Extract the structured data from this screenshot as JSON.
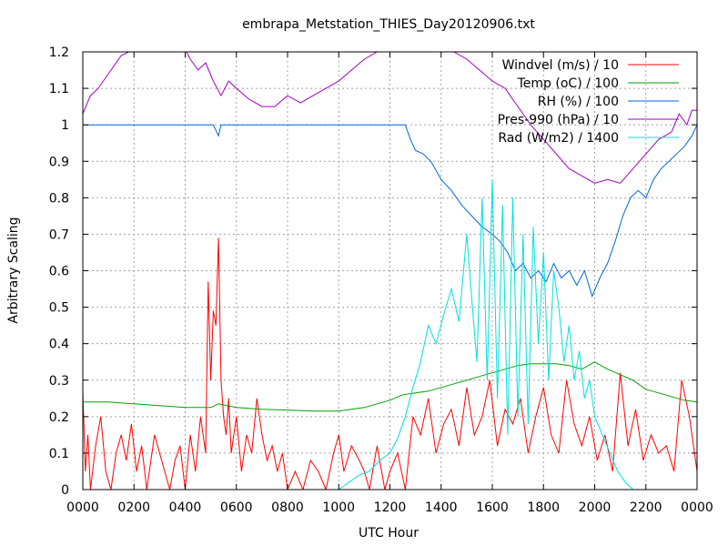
{
  "chart_data": {
    "type": "line",
    "title": "embrapa_Metstation_THIES_Day20120906.txt",
    "xlabel": "UTC Hour",
    "ylabel": "Arbitrary Scaling",
    "xlim": [
      0,
      24
    ],
    "ylim": [
      0,
      1.2
    ],
    "x_tick_labels": [
      "0000",
      "0200",
      "0400",
      "0600",
      "0800",
      "1000",
      "1200",
      "1400",
      "1600",
      "1800",
      "2000",
      "2200",
      "0000"
    ],
    "y_tick_labels": [
      "0",
      "0.1",
      "0.2",
      "0.3",
      "0.4",
      "0.5",
      "0.6",
      "0.7",
      "0.8",
      "0.9",
      "1",
      "1.1",
      "1.2"
    ],
    "grid": true,
    "legend_position": "top-right",
    "series": [
      {
        "name": "Windvel (m/s) / 10",
        "color": "#ff0000",
        "x": [
          0,
          0.1,
          0.2,
          0.3,
          0.5,
          0.7,
          0.9,
          1.1,
          1.3,
          1.5,
          1.7,
          1.9,
          2.1,
          2.3,
          2.5,
          2.8,
          3.0,
          3.2,
          3.4,
          3.6,
          3.8,
          4.0,
          4.2,
          4.4,
          4.6,
          4.8,
          4.9,
          5.0,
          5.1,
          5.2,
          5.3,
          5.4,
          5.5,
          5.6,
          5.7,
          5.8,
          6.0,
          6.2,
          6.4,
          6.6,
          6.8,
          7.0,
          7.2,
          7.4,
          7.6,
          7.8,
          8.0,
          8.3,
          8.6,
          8.9,
          9.2,
          9.5,
          9.8,
          10.0,
          10.2,
          10.5,
          10.8,
          11.0,
          11.2,
          11.5,
          11.8,
          12.0,
          12.3,
          12.6,
          12.9,
          13.2,
          13.5,
          13.8,
          14.1,
          14.4,
          14.7,
          15.0,
          15.3,
          15.6,
          15.9,
          16.2,
          16.5,
          16.8,
          17.1,
          17.4,
          17.7,
          18.0,
          18.3,
          18.6,
          18.9,
          19.2,
          19.5,
          19.8,
          20.1,
          20.4,
          20.7,
          21.0,
          21.3,
          21.6,
          21.9,
          22.2,
          22.5,
          22.8,
          23.1,
          23.4,
          23.7,
          24.0
        ],
        "values": [
          0.27,
          0.05,
          0.15,
          0.0,
          0.12,
          0.2,
          0.05,
          0.0,
          0.1,
          0.15,
          0.08,
          0.18,
          0.05,
          0.12,
          0.0,
          0.15,
          0.1,
          0.05,
          0.0,
          0.08,
          0.12,
          0.0,
          0.15,
          0.05,
          0.2,
          0.1,
          0.57,
          0.3,
          0.49,
          0.45,
          0.69,
          0.3,
          0.2,
          0.15,
          0.25,
          0.1,
          0.2,
          0.05,
          0.15,
          0.1,
          0.25,
          0.15,
          0.08,
          0.12,
          0.05,
          0.1,
          0.0,
          0.05,
          0.0,
          0.08,
          0.05,
          0.0,
          0.1,
          0.15,
          0.05,
          0.12,
          0.08,
          0.05,
          0.0,
          0.12,
          0.0,
          0.05,
          0.1,
          0.0,
          0.2,
          0.15,
          0.25,
          0.1,
          0.18,
          0.22,
          0.12,
          0.28,
          0.15,
          0.2,
          0.3,
          0.12,
          0.22,
          0.18,
          0.25,
          0.1,
          0.2,
          0.28,
          0.15,
          0.1,
          0.3,
          0.18,
          0.12,
          0.2,
          0.08,
          0.15,
          0.05,
          0.32,
          0.12,
          0.22,
          0.08,
          0.15,
          0.1,
          0.12,
          0.05,
          0.3,
          0.2,
          0.05
        ]
      },
      {
        "name": "Temp (oC) / 100",
        "color": "#00a000",
        "x": [
          0,
          1,
          2,
          3,
          4,
          5,
          5.3,
          6,
          7,
          8,
          9,
          10,
          10.5,
          11,
          11.5,
          12,
          12.5,
          13,
          13.5,
          14,
          14.5,
          15,
          15.5,
          16,
          16.5,
          17,
          17.5,
          18,
          18.5,
          19,
          19.5,
          20,
          20.5,
          21,
          21.5,
          22,
          22.5,
          23,
          23.5,
          24
        ],
        "values": [
          0.24,
          0.24,
          0.235,
          0.23,
          0.225,
          0.225,
          0.235,
          0.225,
          0.22,
          0.218,
          0.215,
          0.215,
          0.22,
          0.225,
          0.235,
          0.245,
          0.26,
          0.265,
          0.27,
          0.28,
          0.29,
          0.3,
          0.31,
          0.32,
          0.33,
          0.34,
          0.345,
          0.345,
          0.345,
          0.34,
          0.33,
          0.35,
          0.33,
          0.315,
          0.3,
          0.275,
          0.265,
          0.255,
          0.245,
          0.24
        ]
      },
      {
        "name": "RH (%) / 100",
        "color": "#0066dd",
        "x": [
          0,
          2,
          4,
          5.1,
          5.3,
          5.4,
          5.6,
          7,
          9,
          11,
          12.6,
          12.8,
          13.0,
          13.3,
          13.6,
          14.0,
          14.4,
          14.8,
          15.2,
          15.6,
          16.0,
          16.3,
          16.6,
          16.9,
          17.2,
          17.5,
          17.8,
          18.1,
          18.4,
          18.7,
          19.0,
          19.3,
          19.6,
          19.9,
          20.2,
          20.5,
          20.8,
          21.1,
          21.4,
          21.7,
          22.0,
          22.3,
          22.6,
          22.9,
          23.2,
          23.5,
          23.8,
          24.0
        ],
        "values": [
          1.0,
          1.0,
          1.0,
          1.0,
          0.97,
          1.0,
          1.0,
          1.0,
          1.0,
          1.0,
          1.0,
          0.96,
          0.93,
          0.92,
          0.9,
          0.85,
          0.82,
          0.78,
          0.75,
          0.72,
          0.7,
          0.68,
          0.65,
          0.6,
          0.62,
          0.58,
          0.6,
          0.57,
          0.62,
          0.58,
          0.6,
          0.56,
          0.6,
          0.53,
          0.58,
          0.62,
          0.68,
          0.75,
          0.8,
          0.82,
          0.8,
          0.85,
          0.88,
          0.9,
          0.92,
          0.94,
          0.97,
          1.0
        ]
      },
      {
        "name": "Pres-990 (hPa) / 10",
        "color": "#a000c0",
        "x": [
          0,
          0.3,
          0.6,
          0.9,
          1.2,
          1.5,
          1.8,
          2.1,
          2.4,
          2.7,
          3.0,
          3.3,
          3.6,
          3.9,
          4.2,
          4.5,
          4.8,
          5.1,
          5.4,
          5.7,
          6.0,
          6.5,
          7.0,
          7.5,
          8.0,
          8.5,
          9.0,
          9.5,
          10.0,
          10.5,
          11.0,
          11.5,
          12.0,
          12.5,
          13.0,
          13.5,
          14.0,
          14.5,
          15.0,
          15.5,
          16.0,
          16.5,
          17.0,
          17.5,
          18.0,
          18.5,
          19.0,
          19.5,
          20.0,
          20.5,
          21.0,
          21.5,
          22.0,
          22.5,
          23.0,
          23.3,
          23.6,
          23.8,
          24.0
        ],
        "values": [
          1.03,
          1.08,
          1.1,
          1.13,
          1.16,
          1.19,
          1.2,
          1.23,
          1.25,
          1.26,
          1.25,
          1.26,
          1.24,
          1.22,
          1.18,
          1.15,
          1.17,
          1.12,
          1.08,
          1.12,
          1.1,
          1.07,
          1.05,
          1.05,
          1.08,
          1.06,
          1.08,
          1.1,
          1.12,
          1.15,
          1.18,
          1.2,
          1.22,
          1.24,
          1.25,
          1.24,
          1.22,
          1.2,
          1.18,
          1.15,
          1.12,
          1.1,
          1.05,
          1.0,
          0.96,
          0.92,
          0.88,
          0.86,
          0.84,
          0.85,
          0.84,
          0.88,
          0.92,
          0.96,
          0.98,
          1.03,
          1.0,
          1.04,
          1.04
        ]
      },
      {
        "name": "Rad (W/m2) / 1400",
        "color": "#00e0e0",
        "x": [
          0,
          10,
          10.4,
          10.8,
          11.2,
          11.6,
          12.0,
          12.3,
          12.6,
          12.9,
          13.2,
          13.5,
          13.8,
          14.1,
          14.4,
          14.7,
          15.0,
          15.2,
          15.4,
          15.6,
          15.8,
          16.0,
          16.2,
          16.4,
          16.6,
          16.8,
          17.0,
          17.2,
          17.4,
          17.6,
          17.8,
          18.0,
          18.2,
          18.4,
          18.6,
          18.8,
          19.0,
          19.2,
          19.4,
          19.6,
          19.8,
          20.0,
          20.3,
          20.6,
          20.9,
          21.2,
          21.5,
          24.0
        ],
        "values": [
          0,
          0,
          0.02,
          0.04,
          0.05,
          0.08,
          0.1,
          0.14,
          0.2,
          0.28,
          0.35,
          0.45,
          0.4,
          0.48,
          0.55,
          0.46,
          0.7,
          0.52,
          0.35,
          0.8,
          0.3,
          0.85,
          0.25,
          0.78,
          0.15,
          0.8,
          0.2,
          0.7,
          0.18,
          0.72,
          0.4,
          0.65,
          0.3,
          0.6,
          0.5,
          0.35,
          0.45,
          0.3,
          0.38,
          0.25,
          0.3,
          0.2,
          0.15,
          0.1,
          0.05,
          0.02,
          0.0,
          0.0
        ]
      }
    ]
  }
}
